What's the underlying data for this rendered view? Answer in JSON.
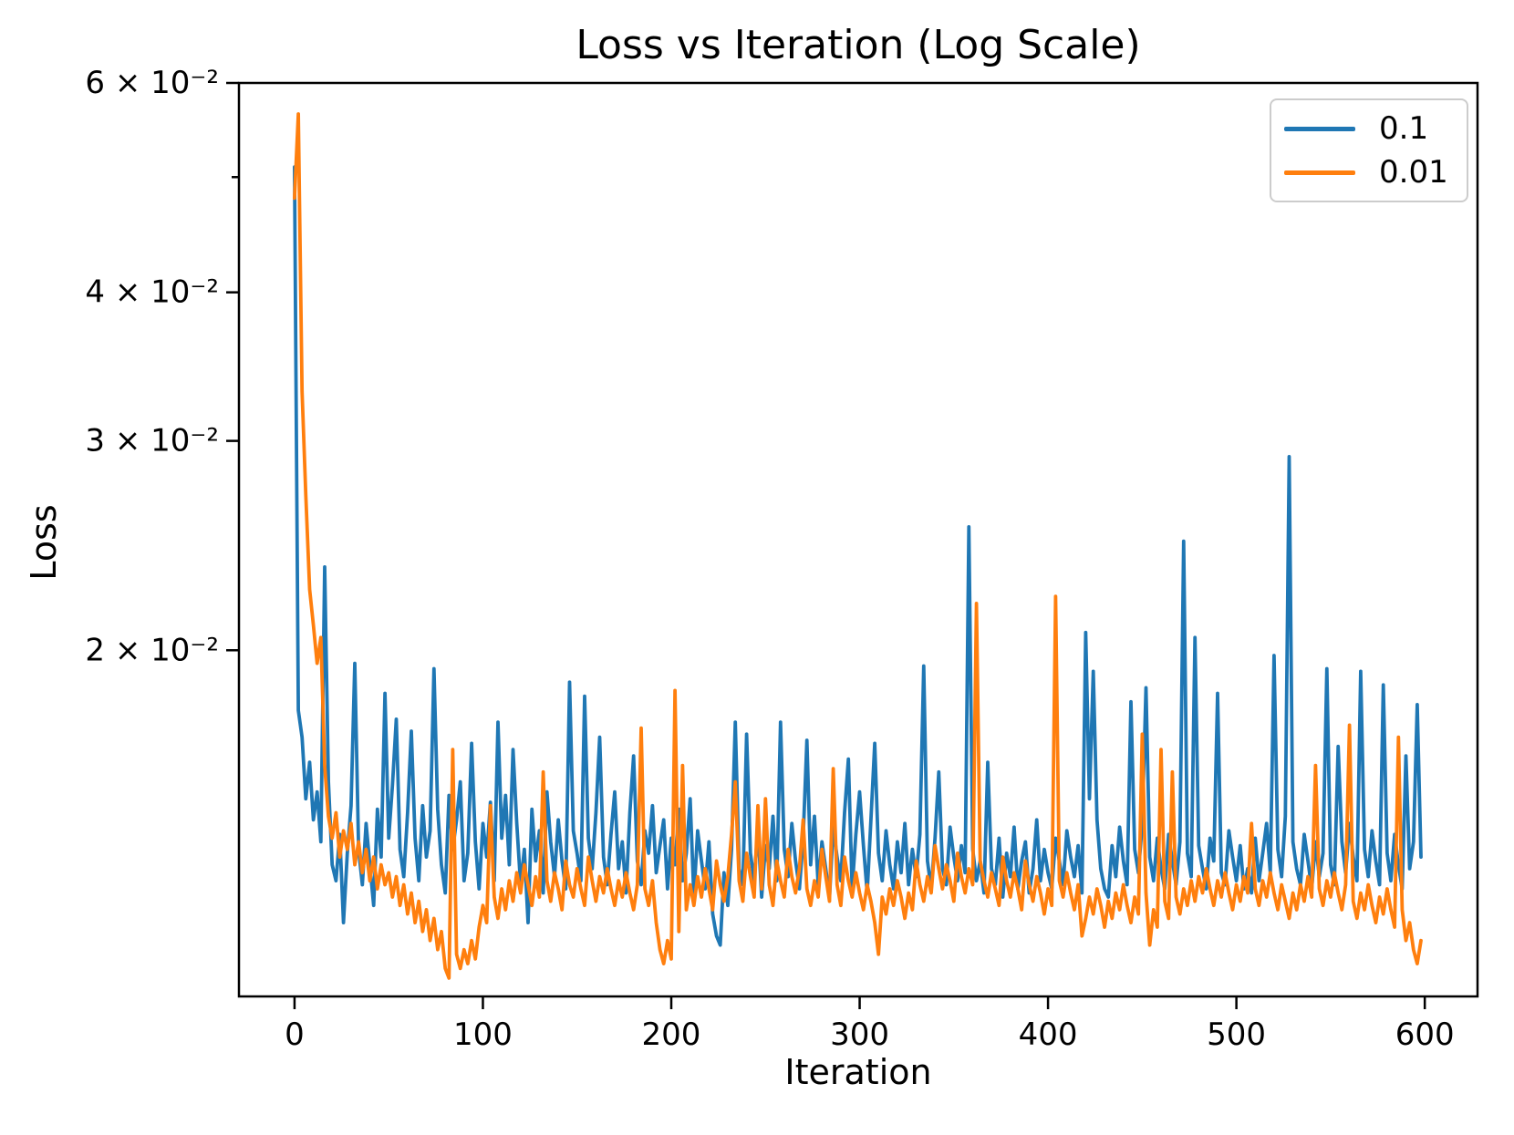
{
  "figure": {
    "title": "Loss vs Iteration (Log Scale)",
    "xlabel": "Iteration",
    "ylabel": "Loss",
    "background": "#ffffff",
    "spine_color": "#000000"
  },
  "chart_data": {
    "type": "line",
    "title": "Loss vs Iteration (Log Scale)",
    "xlabel": "Iteration",
    "ylabel": "Loss",
    "yscale": "log",
    "grid": false,
    "legend_position": "upper right",
    "xlim": [
      -29.5,
      628
    ],
    "ylim": [
      0.01023,
      0.06
    ],
    "x_ticks": [
      0,
      100,
      200,
      300,
      400,
      500,
      600
    ],
    "y_ticks": [
      {
        "value": 0.06,
        "label": "6 × 10⁻²",
        "minor": false
      },
      {
        "value": 0.05,
        "label": "",
        "minor": true
      },
      {
        "value": 0.04,
        "label": "4 × 10⁻²",
        "minor": false
      },
      {
        "value": 0.03,
        "label": "3 × 10⁻²",
        "minor": false
      },
      {
        "value": 0.02,
        "label": "2 × 10⁻²",
        "minor": false
      }
    ],
    "series": [
      {
        "name": "0.1",
        "color": "#1f77b4",
        "x0": 0,
        "dx": 2,
        "y": [
          0.051,
          0.0178,
          0.0169,
          0.015,
          0.0161,
          0.0144,
          0.0152,
          0.0138,
          0.0235,
          0.0155,
          0.0132,
          0.0128,
          0.014,
          0.0118,
          0.0135,
          0.0148,
          0.0195,
          0.0136,
          0.0127,
          0.0143,
          0.0132,
          0.0122,
          0.0147,
          0.0134,
          0.0184,
          0.0139,
          0.0154,
          0.0175,
          0.0136,
          0.0129,
          0.0146,
          0.0171,
          0.0139,
          0.0128,
          0.0148,
          0.0134,
          0.0141,
          0.0193,
          0.0147,
          0.0132,
          0.0125,
          0.0151,
          0.0136,
          0.0144,
          0.0155,
          0.0128,
          0.0135,
          0.0167,
          0.0138,
          0.0126,
          0.0143,
          0.0134,
          0.0149,
          0.0128,
          0.0174,
          0.0139,
          0.0151,
          0.0132,
          0.0165,
          0.0143,
          0.0127,
          0.0136,
          0.0118,
          0.0147,
          0.0133,
          0.0141,
          0.0125,
          0.0152,
          0.0138,
          0.0129,
          0.0144,
          0.0133,
          0.0126,
          0.0188,
          0.0141,
          0.0135,
          0.0128,
          0.0183,
          0.0139,
          0.0131,
          0.0146,
          0.0169,
          0.0134,
          0.0127,
          0.014,
          0.0152,
          0.0131,
          0.0138,
          0.0125,
          0.0146,
          0.0163,
          0.0133,
          0.0127,
          0.0141,
          0.0135,
          0.0148,
          0.013,
          0.0137,
          0.0144,
          0.0126,
          0.0139,
          0.0132,
          0.0147,
          0.0128,
          0.0135,
          0.015,
          0.0124,
          0.0141,
          0.0133,
          0.0126,
          0.0138,
          0.012,
          0.0115,
          0.0113,
          0.013,
          0.0122,
          0.0136,
          0.0174,
          0.0131,
          0.0127,
          0.017,
          0.0135,
          0.0128,
          0.0142,
          0.0124,
          0.0137,
          0.0131,
          0.0145,
          0.0128,
          0.0174,
          0.0136,
          0.0129,
          0.0143,
          0.0133,
          0.0126,
          0.0139,
          0.0168,
          0.0132,
          0.0145,
          0.0127,
          0.0138,
          0.0131,
          0.0124,
          0.0142,
          0.0134,
          0.0128,
          0.0146,
          0.0162,
          0.0126,
          0.014,
          0.0152,
          0.0137,
          0.0125,
          0.0144,
          0.0167,
          0.0135,
          0.0128,
          0.0141,
          0.0132,
          0.0126,
          0.0138,
          0.013,
          0.0143,
          0.0127,
          0.0136,
          0.0129,
          0.014,
          0.0194,
          0.0133,
          0.0126,
          0.0139,
          0.0158,
          0.0131,
          0.0127,
          0.0142,
          0.0134,
          0.0128,
          0.0137,
          0.013,
          0.0254,
          0.0136,
          0.0128,
          0.0133,
          0.0125,
          0.0161,
          0.0131,
          0.0127,
          0.0139,
          0.0124,
          0.0135,
          0.0129,
          0.0142,
          0.0126,
          0.0133,
          0.0138,
          0.0125,
          0.0131,
          0.0144,
          0.0128,
          0.0136,
          0.013,
          0.0126,
          0.0139,
          0.0133,
          0.0127,
          0.0141,
          0.0134,
          0.0129,
          0.0137,
          0.0125,
          0.0207,
          0.015,
          0.0192,
          0.0144,
          0.0131,
          0.0126,
          0.0124,
          0.0137,
          0.0129,
          0.0142,
          0.0133,
          0.0127,
          0.0181,
          0.0136,
          0.013,
          0.0143,
          0.0186,
          0.0134,
          0.0128,
          0.0139,
          0.0131,
          0.0126,
          0.014,
          0.0133,
          0.0127,
          0.0138,
          0.0247,
          0.0135,
          0.0129,
          0.0205,
          0.0137,
          0.0131,
          0.0126,
          0.0139,
          0.0133,
          0.0184,
          0.013,
          0.0127,
          0.0141,
          0.0134,
          0.0128,
          0.0137,
          0.0126,
          0.0131,
          0.0125,
          0.0139,
          0.0128,
          0.0135,
          0.0143,
          0.013,
          0.0198,
          0.0136,
          0.0129,
          0.0145,
          0.0291,
          0.0138,
          0.0131,
          0.0127,
          0.014,
          0.0133,
          0.0126,
          0.0138,
          0.0129,
          0.0135,
          0.0193,
          0.0132,
          0.0127,
          0.0166,
          0.0138,
          0.013,
          0.0143,
          0.0134,
          0.0128,
          0.0192,
          0.0136,
          0.0129,
          0.0141,
          0.0133,
          0.0127,
          0.0187,
          0.0135,
          0.0128,
          0.014,
          0.0132,
          0.0126,
          0.0163,
          0.0131,
          0.0138,
          0.018,
          0.0134
        ]
      },
      {
        "name": "0.01",
        "color": "#ff7f0e",
        "x0": 0,
        "dx": 2,
        "y": [
          0.048,
          0.0565,
          0.033,
          0.027,
          0.0225,
          0.021,
          0.0195,
          0.0205,
          0.016,
          0.0145,
          0.0139,
          0.0146,
          0.0134,
          0.0141,
          0.0136,
          0.0143,
          0.0132,
          0.0138,
          0.013,
          0.0136,
          0.0128,
          0.0134,
          0.0126,
          0.0132,
          0.0127,
          0.013,
          0.0124,
          0.0129,
          0.0122,
          0.0127,
          0.012,
          0.0125,
          0.0118,
          0.0123,
          0.0116,
          0.0121,
          0.0114,
          0.0119,
          0.0112,
          0.0116,
          0.0108,
          0.0106,
          0.0165,
          0.0111,
          0.0108,
          0.0112,
          0.0109,
          0.0114,
          0.011,
          0.0117,
          0.0122,
          0.0118,
          0.0148,
          0.0124,
          0.0119,
          0.0126,
          0.0121,
          0.0128,
          0.0123,
          0.013,
          0.0125,
          0.0132,
          0.0127,
          0.0122,
          0.0129,
          0.0124,
          0.0158,
          0.0128,
          0.0123,
          0.013,
          0.0126,
          0.0121,
          0.0133,
          0.0127,
          0.0124,
          0.0131,
          0.0126,
          0.0122,
          0.0134,
          0.0128,
          0.0123,
          0.0129,
          0.0125,
          0.0131,
          0.0126,
          0.0122,
          0.0128,
          0.0124,
          0.013,
          0.0125,
          0.0121,
          0.0127,
          0.0172,
          0.0126,
          0.0122,
          0.0128,
          0.0118,
          0.0112,
          0.0109,
          0.0114,
          0.011,
          0.0185,
          0.0116,
          0.016,
          0.0121,
          0.0127,
          0.0122,
          0.0129,
          0.0124,
          0.0131,
          0.0126,
          0.0121,
          0.0133,
          0.0127,
          0.0123,
          0.0129,
          0.014,
          0.0155,
          0.0128,
          0.0123,
          0.0135,
          0.0129,
          0.0124,
          0.0148,
          0.0126,
          0.015,
          0.0127,
          0.0122,
          0.0133,
          0.0128,
          0.0124,
          0.0136,
          0.0129,
          0.0125,
          0.0131,
          0.0144,
          0.0126,
          0.0122,
          0.0128,
          0.0124,
          0.0136,
          0.0129,
          0.0123,
          0.0159,
          0.0127,
          0.0122,
          0.0134,
          0.0128,
          0.0124,
          0.013,
          0.0125,
          0.0121,
          0.0127,
          0.0123,
          0.0118,
          0.0111,
          0.0124,
          0.012,
          0.0126,
          0.0122,
          0.0128,
          0.0124,
          0.0119,
          0.0125,
          0.0121,
          0.0133,
          0.0127,
          0.0123,
          0.0129,
          0.0125,
          0.0137,
          0.0131,
          0.0126,
          0.0132,
          0.0128,
          0.0123,
          0.0135,
          0.0129,
          0.0125,
          0.0131,
          0.0127,
          0.0219,
          0.0133,
          0.0128,
          0.0124,
          0.013,
          0.0126,
          0.0122,
          0.0134,
          0.0128,
          0.0124,
          0.013,
          0.0126,
          0.0121,
          0.0133,
          0.0127,
          0.0123,
          0.0129,
          0.0125,
          0.012,
          0.0126,
          0.0122,
          0.0222,
          0.0128,
          0.0124,
          0.013,
          0.0125,
          0.0121,
          0.0127,
          0.0115,
          0.0119,
          0.0124,
          0.012,
          0.0126,
          0.0122,
          0.0117,
          0.0123,
          0.0119,
          0.0125,
          0.0121,
          0.0127,
          0.0122,
          0.0118,
          0.0124,
          0.012,
          0.017,
          0.0125,
          0.0113,
          0.0121,
          0.0117,
          0.0165,
          0.0123,
          0.0119,
          0.0158,
          0.0124,
          0.012,
          0.0126,
          0.0122,
          0.0128,
          0.0123,
          0.0129,
          0.0125,
          0.0131,
          0.0126,
          0.0122,
          0.0128,
          0.0124,
          0.013,
          0.0125,
          0.0121,
          0.0127,
          0.0123,
          0.0129,
          0.0125,
          0.0143,
          0.0126,
          0.0122,
          0.0128,
          0.0124,
          0.013,
          0.0125,
          0.0121,
          0.0127,
          0.0123,
          0.0119,
          0.0125,
          0.0121,
          0.0127,
          0.0123,
          0.0129,
          0.0124,
          0.016,
          0.0126,
          0.0122,
          0.0128,
          0.0124,
          0.013,
          0.0125,
          0.0121,
          0.0127,
          0.0173,
          0.0123,
          0.0119,
          0.0125,
          0.0121,
          0.0127,
          0.0122,
          0.0118,
          0.0124,
          0.012,
          0.0126,
          0.0121,
          0.0117,
          0.0169,
          0.0121,
          0.0114,
          0.0118,
          0.0112,
          0.0109,
          0.0114
        ]
      }
    ]
  }
}
